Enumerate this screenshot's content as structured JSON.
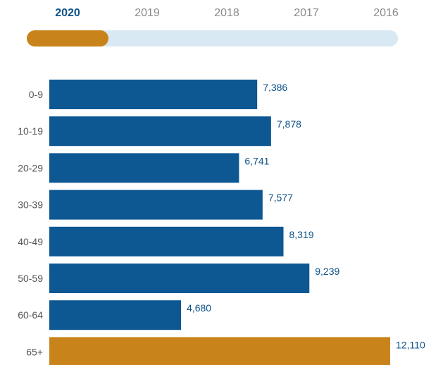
{
  "years": {
    "selected": "2020",
    "items": [
      "2020",
      "2019",
      "2018",
      "2017",
      "2016"
    ]
  },
  "colors": {
    "bar": "#0d5792",
    "highlight_bar": "#c8841b",
    "active_tab": "#0d5289",
    "inactive_tab": "#8a8a8a",
    "slider_track": "#d9e9f4",
    "slider_thumb": "#c8841b",
    "value_label": "#0d5289"
  },
  "slider": {
    "position_fraction": 0.22
  },
  "chart_data": {
    "type": "bar",
    "orientation": "horizontal",
    "categories": [
      "0-9",
      "10-19",
      "20-29",
      "30-39",
      "40-49",
      "50-59",
      "60-64",
      "65+"
    ],
    "values": [
      7386,
      7878,
      6741,
      7577,
      8319,
      9239,
      4680,
      12110
    ],
    "value_labels": [
      "7,386",
      "7,878",
      "6,741",
      "7,577",
      "8,319",
      "9,239",
      "4,680",
      "12,110"
    ],
    "highlight": "65+",
    "xlim": [
      0,
      12110
    ],
    "title": "",
    "xlabel": "",
    "ylabel": "",
    "grid": false,
    "legend": "none"
  }
}
